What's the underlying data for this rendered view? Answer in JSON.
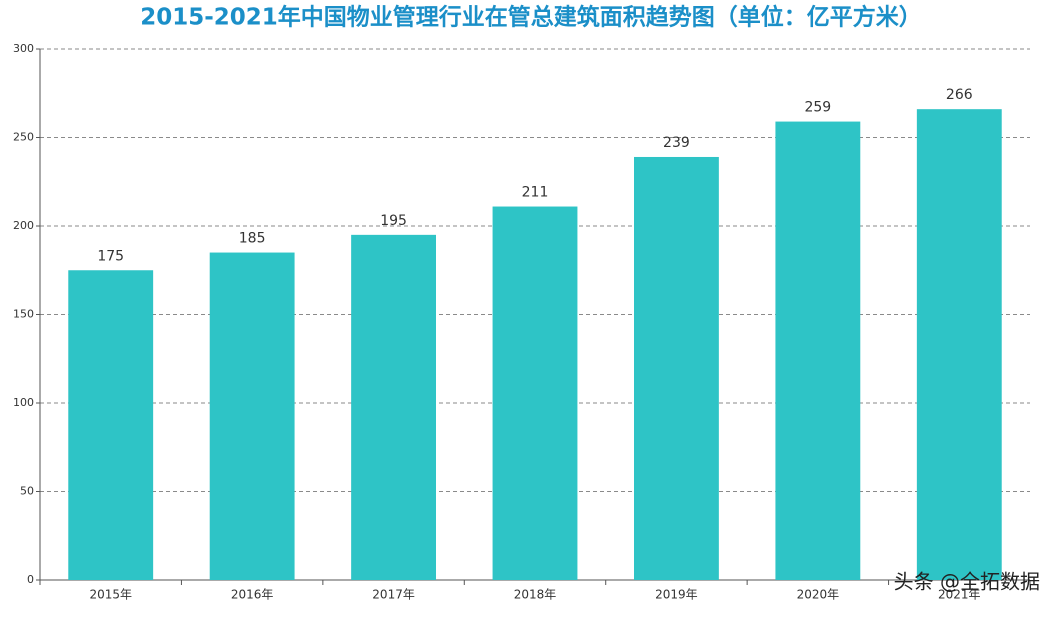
{
  "chart_data": {
    "type": "bar",
    "title": "2015-2021年中国物业管理行业在管总建筑面积趋势图（单位：亿平方米）",
    "categories": [
      "2015年",
      "2016年",
      "2017年",
      "2018年",
      "2019年",
      "2020年",
      "2021年"
    ],
    "values": [
      175,
      185,
      195,
      211,
      239,
      259,
      266
    ],
    "color": "#2ec4c6",
    "ylim": [
      0,
      300
    ],
    "yticks": [
      0,
      50,
      100,
      150,
      200,
      250,
      300
    ],
    "grid": true,
    "watermark": "头条 @全拓数据"
  }
}
